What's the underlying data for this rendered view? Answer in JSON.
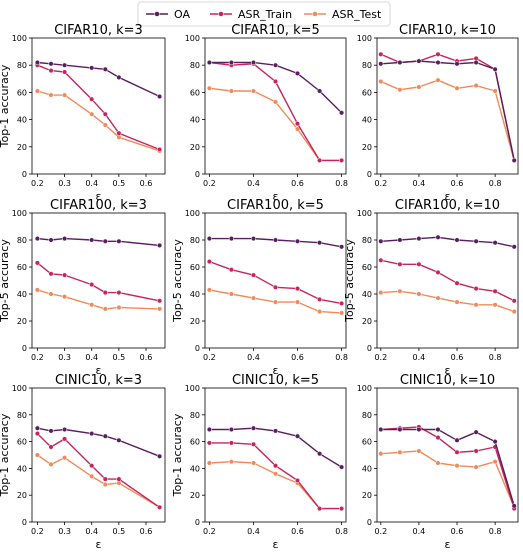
{
  "legend": {
    "entries": [
      {
        "name": "OA",
        "color": "#5a1e5e"
      },
      {
        "name": "ASR_Train",
        "color": "#c8245c"
      },
      {
        "name": "ASR_Test",
        "color": "#f08a5a"
      }
    ],
    "placement": "top-center"
  },
  "chart_data": [
    {
      "type": "line",
      "title": "CIFAR10, k=3",
      "xlabel": "ε",
      "ylabel": "Top-1 accuracy",
      "xlim": [
        0.18,
        0.67
      ],
      "ylim": [
        0,
        100
      ],
      "xticks": [
        "0.2",
        "0.3",
        "0.4",
        "0.5",
        "0.6"
      ],
      "yticks": [
        "0",
        "20",
        "40",
        "60",
        "80",
        "100"
      ],
      "x": [
        0.2,
        0.25,
        0.3,
        0.4,
        0.45,
        0.5,
        0.65
      ],
      "series": [
        {
          "name": "OA",
          "values": [
            82,
            81,
            80,
            78,
            77,
            71,
            57
          ]
        },
        {
          "name": "ASR_Train",
          "values": [
            80,
            76,
            75,
            55,
            44,
            30,
            18
          ]
        },
        {
          "name": "ASR_Test",
          "values": [
            61,
            58,
            58,
            44,
            36,
            27,
            17
          ]
        }
      ]
    },
    {
      "type": "line",
      "title": "CIFAR10, k=5",
      "xlabel": "ε",
      "ylabel": "",
      "xlim": [
        0.18,
        0.82
      ],
      "ylim": [
        0,
        100
      ],
      "xticks": [
        "0.2",
        "0.4",
        "0.6",
        "0.8"
      ],
      "yticks": [
        "0",
        "20",
        "40",
        "60",
        "80",
        "100"
      ],
      "x": [
        0.2,
        0.3,
        0.4,
        0.5,
        0.6,
        0.7,
        0.8
      ],
      "series": [
        {
          "name": "OA",
          "values": [
            82,
            82,
            82,
            80,
            74,
            61,
            45
          ]
        },
        {
          "name": "ASR_Train",
          "values": [
            82,
            80,
            81,
            68,
            37,
            10,
            10
          ]
        },
        {
          "name": "ASR_Test",
          "values": [
            63,
            61,
            61,
            53,
            33,
            10,
            10
          ]
        }
      ]
    },
    {
      "type": "line",
      "title": "CIFAR10, k=10",
      "xlabel": "ε",
      "ylabel": "",
      "xlim": [
        0.18,
        0.92
      ],
      "ylim": [
        0,
        100
      ],
      "xticks": [
        "0.2",
        "0.4",
        "0.6",
        "0.8"
      ],
      "yticks": [
        "0",
        "20",
        "40",
        "60",
        "80",
        "100"
      ],
      "x": [
        0.2,
        0.3,
        0.4,
        0.5,
        0.6,
        0.7,
        0.8,
        0.9
      ],
      "series": [
        {
          "name": "OA",
          "values": [
            81,
            82,
            83,
            82,
            81,
            82,
            77,
            10
          ]
        },
        {
          "name": "ASR_Train",
          "values": [
            88,
            82,
            83,
            88,
            83,
            85,
            77,
            10
          ]
        },
        {
          "name": "ASR_Test",
          "values": [
            68,
            62,
            64,
            69,
            63,
            65,
            61,
            10
          ]
        }
      ]
    },
    {
      "type": "line",
      "title": "CIFAR100, k=3",
      "xlabel": "ε",
      "ylabel": "Top-5 accuracy",
      "xlim": [
        0.18,
        0.67
      ],
      "ylim": [
        0,
        100
      ],
      "xticks": [
        "0.2",
        "0.3",
        "0.4",
        "0.5",
        "0.6"
      ],
      "yticks": [
        "0",
        "20",
        "40",
        "60",
        "80",
        "100"
      ],
      "x": [
        0.2,
        0.25,
        0.3,
        0.4,
        0.45,
        0.5,
        0.65
      ],
      "series": [
        {
          "name": "OA",
          "values": [
            81,
            80,
            81,
            80,
            79,
            79,
            76
          ]
        },
        {
          "name": "ASR_Train",
          "values": [
            63,
            55,
            54,
            47,
            41,
            41,
            35
          ]
        },
        {
          "name": "ASR_Test",
          "values": [
            43,
            40,
            38,
            32,
            29,
            30,
            29
          ]
        }
      ]
    },
    {
      "type": "line",
      "title": "CIFAR100, k=5",
      "xlabel": "ε",
      "ylabel": "Top-5 accuracy",
      "xlim": [
        0.18,
        0.82
      ],
      "ylim": [
        0,
        100
      ],
      "xticks": [
        "0.2",
        "0.4",
        "0.6",
        "0.8"
      ],
      "yticks": [
        "0",
        "20",
        "40",
        "60",
        "80",
        "100"
      ],
      "x": [
        0.2,
        0.3,
        0.4,
        0.5,
        0.6,
        0.7,
        0.8
      ],
      "series": [
        {
          "name": "OA",
          "values": [
            81,
            81,
            81,
            80,
            79,
            78,
            75
          ]
        },
        {
          "name": "ASR_Train",
          "values": [
            64,
            58,
            54,
            45,
            44,
            36,
            33
          ]
        },
        {
          "name": "ASR_Test",
          "values": [
            43,
            40,
            37,
            34,
            34,
            27,
            26
          ]
        }
      ]
    },
    {
      "type": "line",
      "title": "CIFAR100, k=10",
      "xlabel": "ε",
      "ylabel": "Top-5 accuracy",
      "xlim": [
        0.18,
        0.92
      ],
      "ylim": [
        0,
        100
      ],
      "xticks": [
        "0.2",
        "0.4",
        "0.6",
        "0.8"
      ],
      "yticks": [
        "0",
        "20",
        "40",
        "60",
        "80",
        "100"
      ],
      "x": [
        0.2,
        0.3,
        0.4,
        0.5,
        0.6,
        0.7,
        0.8,
        0.9
      ],
      "series": [
        {
          "name": "OA",
          "values": [
            79,
            80,
            81,
            82,
            80,
            79,
            78,
            75
          ]
        },
        {
          "name": "ASR_Train",
          "values": [
            65,
            62,
            62,
            56,
            48,
            44,
            42,
            35
          ]
        },
        {
          "name": "ASR_Test",
          "values": [
            41,
            42,
            40,
            37,
            34,
            32,
            32,
            27
          ]
        }
      ]
    },
    {
      "type": "line",
      "title": "CINIC10, k=3",
      "xlabel": "ε",
      "ylabel": "Top-1 accuracy",
      "xlim": [
        0.18,
        0.67
      ],
      "ylim": [
        0,
        100
      ],
      "xticks": [
        "0.2",
        "0.3",
        "0.4",
        "0.5",
        "0.6"
      ],
      "yticks": [
        "0",
        "20",
        "40",
        "60",
        "80",
        "100"
      ],
      "x": [
        0.2,
        0.25,
        0.3,
        0.4,
        0.45,
        0.5,
        0.65
      ],
      "series": [
        {
          "name": "OA",
          "values": [
            70,
            68,
            69,
            66,
            64,
            61,
            49
          ]
        },
        {
          "name": "ASR_Train",
          "values": [
            66,
            56,
            62,
            42,
            32,
            32,
            11
          ]
        },
        {
          "name": "ASR_Test",
          "values": [
            50,
            43,
            48,
            34,
            28,
            29,
            11
          ]
        }
      ]
    },
    {
      "type": "line",
      "title": "CINIC10, k=5",
      "xlabel": "ε",
      "ylabel": "Top-1 accuracy",
      "xlim": [
        0.18,
        0.82
      ],
      "ylim": [
        0,
        100
      ],
      "xticks": [
        "0.2",
        "0.4",
        "0.6",
        "0.8"
      ],
      "yticks": [
        "0",
        "20",
        "40",
        "60",
        "80",
        "100"
      ],
      "x": [
        0.2,
        0.3,
        0.4,
        0.5,
        0.6,
        0.7,
        0.8
      ],
      "series": [
        {
          "name": "OA",
          "values": [
            69,
            69,
            70,
            68,
            64,
            51,
            41
          ]
        },
        {
          "name": "ASR_Train",
          "values": [
            59,
            59,
            58,
            42,
            31,
            10,
            10
          ]
        },
        {
          "name": "ASR_Test",
          "values": [
            44,
            45,
            44,
            36,
            29,
            10,
            10
          ]
        }
      ]
    },
    {
      "type": "line",
      "title": "CINIC10, k=10",
      "xlabel": "ε",
      "ylabel": "",
      "xlim": [
        0.18,
        0.92
      ],
      "ylim": [
        0,
        100
      ],
      "xticks": [
        "0.2",
        "0.4",
        "0.6",
        "0.8"
      ],
      "yticks": [
        "0",
        "20",
        "40",
        "60",
        "80",
        "100"
      ],
      "x": [
        0.2,
        0.3,
        0.4,
        0.5,
        0.6,
        0.7,
        0.8,
        0.9
      ],
      "series": [
        {
          "name": "OA",
          "values": [
            69,
            69,
            69,
            69,
            61,
            67,
            60,
            12
          ]
        },
        {
          "name": "ASR_Train",
          "values": [
            69,
            70,
            71,
            63,
            52,
            53,
            56,
            10
          ]
        },
        {
          "name": "ASR_Test",
          "values": [
            51,
            52,
            53,
            44,
            42,
            41,
            45,
            11
          ]
        }
      ]
    }
  ]
}
